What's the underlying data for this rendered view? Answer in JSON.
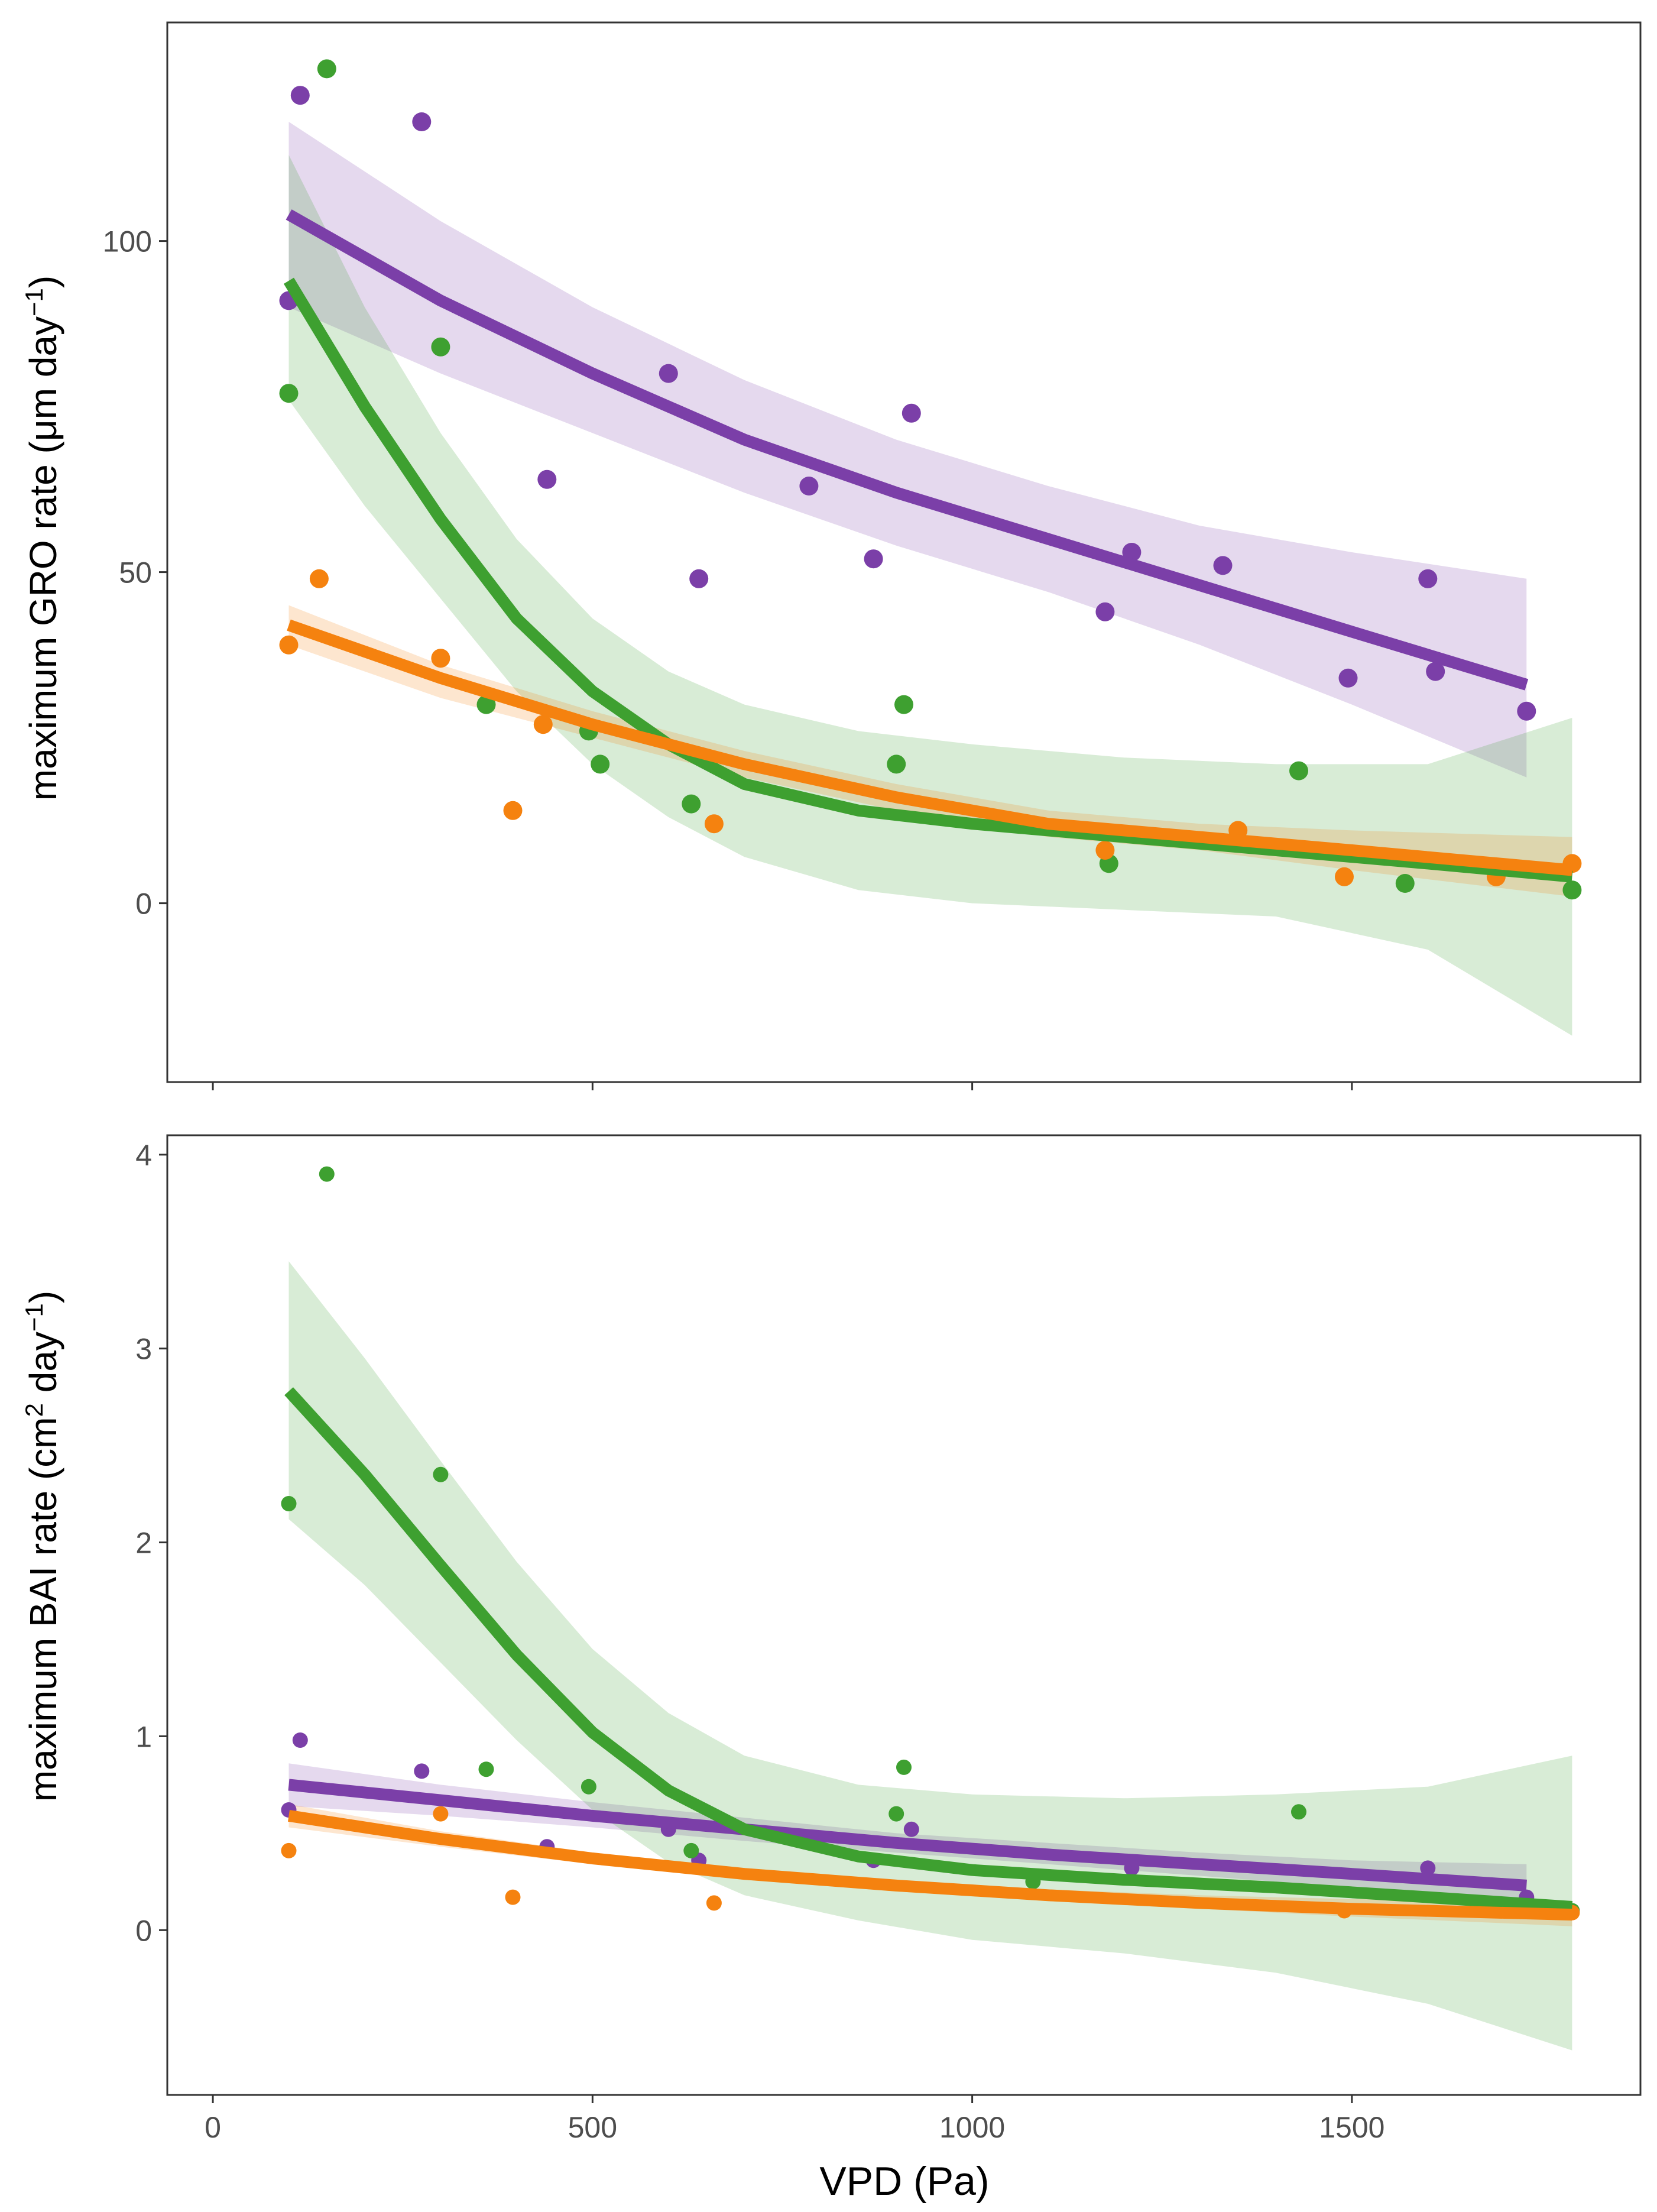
{
  "colors": {
    "purple": "#7b3fa8",
    "green": "#3ea030",
    "orange": "#f5820f"
  },
  "chart_data": [
    {
      "type": "scatter",
      "ylabel_main": "maximum GRO rate (μm day",
      "ylabel_sup": "−1",
      "ylabel_tail": ")",
      "xlim": [
        -60,
        1880
      ],
      "ylim": [
        -27,
        133
      ],
      "xticks": [
        0,
        500,
        1000,
        1500
      ],
      "xtick_labels": [],
      "yticks": [
        0,
        50,
        100
      ],
      "ytick_labels": [
        "0",
        "50",
        "100"
      ],
      "grid": false,
      "legend": "none",
      "series": [
        {
          "color": "purple",
          "points": [
            [
              100,
              91
            ],
            [
              115,
              122
            ],
            [
              275,
              118
            ],
            [
              600,
              80
            ],
            [
              640,
              49
            ],
            [
              440,
              64
            ],
            [
              785,
              63
            ],
            [
              870,
              52
            ],
            [
              920,
              74
            ],
            [
              1210,
              53
            ],
            [
              1175,
              44
            ],
            [
              1330,
              51
            ],
            [
              1495,
              34
            ],
            [
              1600,
              49
            ],
            [
              1610,
              35
            ],
            [
              1730,
              29
            ]
          ],
          "fit": [
            [
              100,
              104
            ],
            [
              300,
              91
            ],
            [
              500,
              80
            ],
            [
              700,
              70
            ],
            [
              900,
              62
            ],
            [
              1100,
              55
            ],
            [
              1300,
              48
            ],
            [
              1500,
              41
            ],
            [
              1730,
              33
            ]
          ],
          "band": [
            [
              100,
              118,
              90
            ],
            [
              300,
              103,
              80
            ],
            [
              500,
              90,
              71
            ],
            [
              700,
              79,
              62
            ],
            [
              900,
              70,
              54
            ],
            [
              1100,
              63,
              47
            ],
            [
              1300,
              57,
              39
            ],
            [
              1500,
              53,
              30
            ],
            [
              1730,
              49,
              19
            ]
          ]
        },
        {
          "color": "green",
          "points": [
            [
              100,
              77
            ],
            [
              150,
              126
            ],
            [
              300,
              84
            ],
            [
              360,
              30
            ],
            [
              495,
              26
            ],
            [
              510,
              21
            ],
            [
              630,
              15
            ],
            [
              900,
              21
            ],
            [
              910,
              30
            ],
            [
              1180,
              6
            ],
            [
              1430,
              20
            ],
            [
              1570,
              3
            ],
            [
              1790,
              2
            ]
          ],
          "fit": [
            [
              100,
              94
            ],
            [
              200,
              75
            ],
            [
              300,
              58
            ],
            [
              400,
              43
            ],
            [
              500,
              32
            ],
            [
              600,
              24
            ],
            [
              700,
              18
            ],
            [
              850,
              14
            ],
            [
              1000,
              12
            ],
            [
              1200,
              10
            ],
            [
              1400,
              8
            ],
            [
              1600,
              6
            ],
            [
              1790,
              4
            ]
          ],
          "band": [
            [
              100,
              113,
              76
            ],
            [
              200,
              90,
              60
            ],
            [
              300,
              71,
              46
            ],
            [
              400,
              55,
              32
            ],
            [
              500,
              43,
              21
            ],
            [
              600,
              35,
              13
            ],
            [
              700,
              30,
              7
            ],
            [
              850,
              26,
              2
            ],
            [
              1000,
              24,
              0
            ],
            [
              1200,
              22,
              -1
            ],
            [
              1400,
              21,
              -2
            ],
            [
              1600,
              21,
              -7
            ],
            [
              1790,
              28,
              -20
            ]
          ]
        },
        {
          "color": "orange",
          "points": [
            [
              100,
              39
            ],
            [
              140,
              49
            ],
            [
              300,
              37
            ],
            [
              395,
              14
            ],
            [
              435,
              27
            ],
            [
              660,
              12
            ],
            [
              1175,
              8
            ],
            [
              1350,
              11
            ],
            [
              1490,
              4
            ],
            [
              1690,
              4
            ],
            [
              1790,
              6
            ]
          ],
          "fit": [
            [
              100,
              42
            ],
            [
              300,
              34
            ],
            [
              500,
              27
            ],
            [
              700,
              21
            ],
            [
              900,
              16
            ],
            [
              1100,
              12
            ],
            [
              1300,
              10
            ],
            [
              1500,
              8
            ],
            [
              1790,
              5
            ]
          ],
          "band": [
            [
              100,
              45,
              39
            ],
            [
              300,
              36,
              31
            ],
            [
              500,
              29,
              25
            ],
            [
              700,
              23,
              19
            ],
            [
              900,
              18,
              14
            ],
            [
              1100,
              14,
              10
            ],
            [
              1300,
              12,
              8
            ],
            [
              1500,
              11,
              5
            ],
            [
              1790,
              10,
              1
            ]
          ]
        }
      ]
    },
    {
      "type": "scatter",
      "ylabel_main": "maximum BAI rate (cm",
      "ylabel_sup": "2",
      "ylabel_mid": " day",
      "ylabel_sup2": "−1",
      "ylabel_tail": ")",
      "xlabel": "VPD (Pa)",
      "xlim": [
        -60,
        1880
      ],
      "ylim": [
        -0.85,
        4.1
      ],
      "xticks": [
        0,
        500,
        1000,
        1500
      ],
      "xtick_labels": [
        "0",
        "500",
        "1000",
        "1500"
      ],
      "yticks": [
        0,
        1,
        2,
        3,
        4
      ],
      "ytick_labels": [
        "0",
        "1",
        "2",
        "3",
        "4"
      ],
      "grid": false,
      "legend": "none",
      "series": [
        {
          "color": "purple",
          "points": [
            [
              100,
              0.62
            ],
            [
              115,
              0.98
            ],
            [
              275,
              0.82
            ],
            [
              440,
              0.43
            ],
            [
              600,
              0.52
            ],
            [
              640,
              0.36
            ],
            [
              870,
              0.36
            ],
            [
              920,
              0.52
            ],
            [
              1210,
              0.32
            ],
            [
              1600,
              0.32
            ],
            [
              1730,
              0.17
            ]
          ],
          "fit": [
            [
              100,
              0.75
            ],
            [
              300,
              0.67
            ],
            [
              500,
              0.59
            ],
            [
              700,
              0.52
            ],
            [
              900,
              0.45
            ],
            [
              1100,
              0.39
            ],
            [
              1300,
              0.34
            ],
            [
              1500,
              0.29
            ],
            [
              1730,
              0.23
            ]
          ],
          "band": [
            [
              100,
              0.86,
              0.64
            ],
            [
              300,
              0.75,
              0.59
            ],
            [
              500,
              0.66,
              0.53
            ],
            [
              700,
              0.58,
              0.46
            ],
            [
              900,
              0.5,
              0.4
            ],
            [
              1100,
              0.45,
              0.34
            ],
            [
              1300,
              0.4,
              0.28
            ],
            [
              1500,
              0.36,
              0.22
            ],
            [
              1730,
              0.34,
              0.12
            ]
          ]
        },
        {
          "color": "green",
          "points": [
            [
              100,
              2.2
            ],
            [
              150,
              3.9
            ],
            [
              300,
              2.35
            ],
            [
              360,
              0.83
            ],
            [
              495,
              0.74
            ],
            [
              630,
              0.41
            ],
            [
              900,
              0.6
            ],
            [
              910,
              0.84
            ],
            [
              1080,
              0.25
            ],
            [
              1430,
              0.61
            ],
            [
              1790,
              0.1
            ]
          ],
          "fit": [
            [
              100,
              2.78
            ],
            [
              200,
              2.35
            ],
            [
              300,
              1.88
            ],
            [
              400,
              1.42
            ],
            [
              500,
              1.02
            ],
            [
              600,
              0.72
            ],
            [
              700,
              0.52
            ],
            [
              850,
              0.38
            ],
            [
              1000,
              0.31
            ],
            [
              1200,
              0.26
            ],
            [
              1400,
              0.22
            ],
            [
              1600,
              0.17
            ],
            [
              1790,
              0.12
            ]
          ],
          "band": [
            [
              100,
              3.45,
              2.12
            ],
            [
              200,
              2.95,
              1.78
            ],
            [
              300,
              2.42,
              1.38
            ],
            [
              400,
              1.9,
              0.98
            ],
            [
              500,
              1.45,
              0.62
            ],
            [
              600,
              1.12,
              0.35
            ],
            [
              700,
              0.9,
              0.18
            ],
            [
              850,
              0.75,
              0.05
            ],
            [
              1000,
              0.7,
              -0.05
            ],
            [
              1200,
              0.68,
              -0.12
            ],
            [
              1400,
              0.7,
              -0.22
            ],
            [
              1600,
              0.74,
              -0.38
            ],
            [
              1790,
              0.9,
              -0.62
            ]
          ]
        },
        {
          "color": "orange",
          "points": [
            [
              100,
              0.41
            ],
            [
              300,
              0.6
            ],
            [
              395,
              0.17
            ],
            [
              660,
              0.14
            ],
            [
              1490,
              0.1
            ],
            [
              1790,
              0.09
            ]
          ],
          "fit": [
            [
              100,
              0.59
            ],
            [
              300,
              0.47
            ],
            [
              500,
              0.37
            ],
            [
              700,
              0.29
            ],
            [
              900,
              0.23
            ],
            [
              1100,
              0.18
            ],
            [
              1300,
              0.14
            ],
            [
              1500,
              0.11
            ],
            [
              1790,
              0.08
            ]
          ],
          "band": [
            [
              100,
              0.65,
              0.53
            ],
            [
              300,
              0.51,
              0.43
            ],
            [
              500,
              0.4,
              0.34
            ],
            [
              700,
              0.32,
              0.26
            ],
            [
              900,
              0.26,
              0.2
            ],
            [
              1100,
              0.21,
              0.15
            ],
            [
              1300,
              0.18,
              0.11
            ],
            [
              1500,
              0.16,
              0.07
            ],
            [
              1790,
              0.15,
              0.02
            ]
          ]
        }
      ]
    }
  ]
}
